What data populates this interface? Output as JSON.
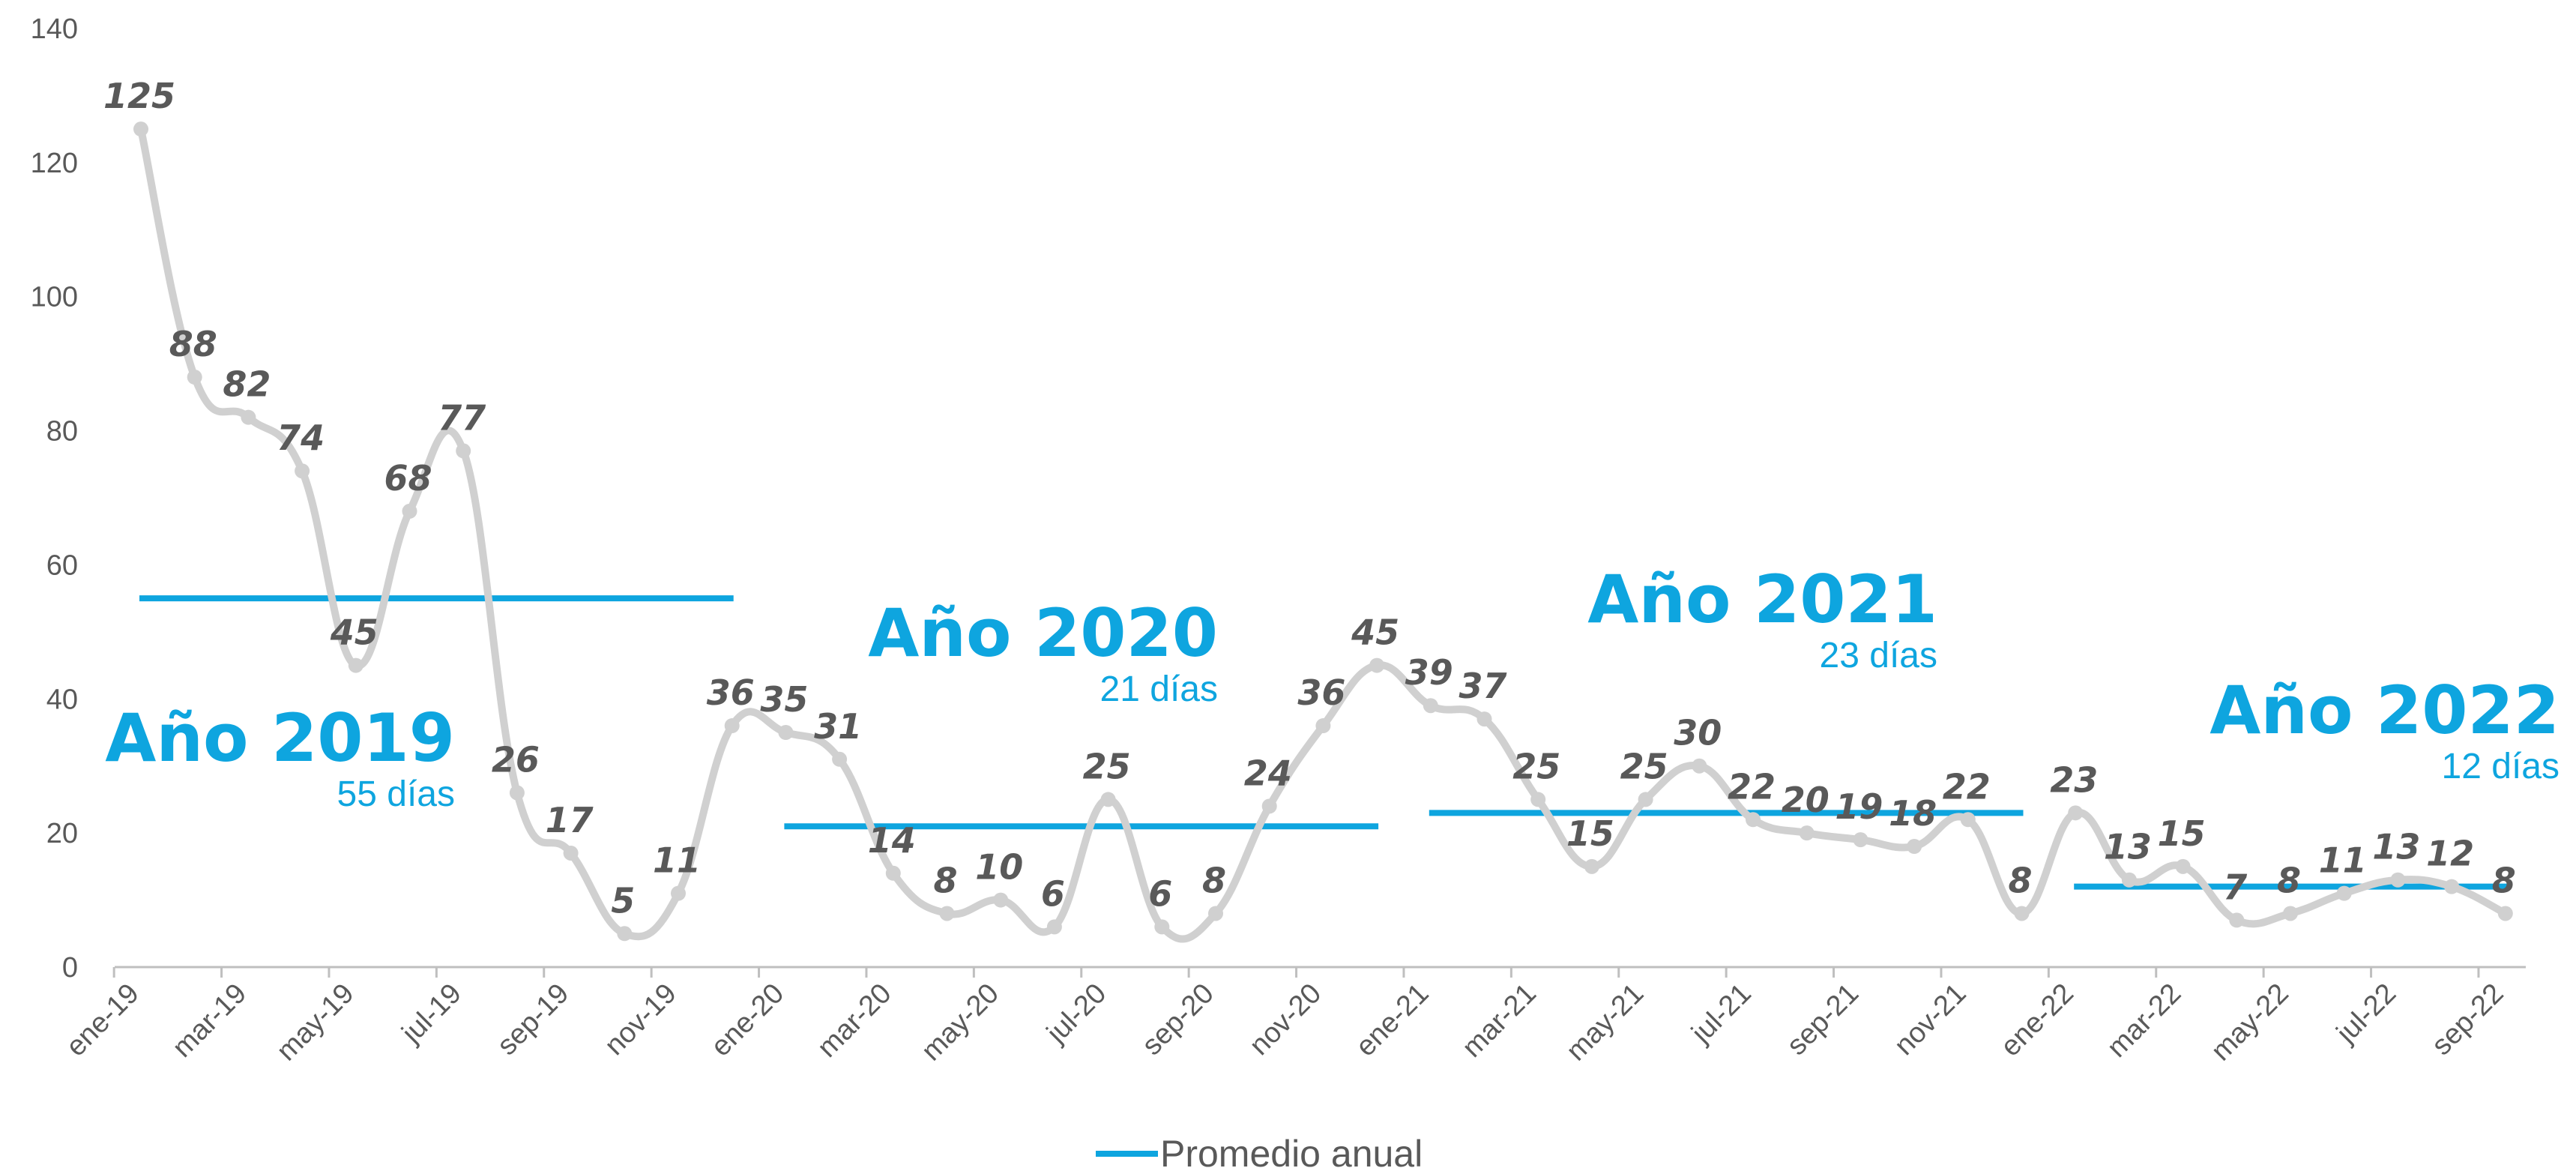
{
  "chart_data": {
    "type": "line",
    "x": [
      "ene-19",
      "feb-19",
      "mar-19",
      "abr-19",
      "may-19",
      "jun-19",
      "jul-19",
      "ago-19",
      "sep-19",
      "oct-19",
      "nov-19",
      "dic-19",
      "ene-20",
      "feb-20",
      "mar-20",
      "abr-20",
      "may-20",
      "jun-20",
      "jul-20",
      "ago-20",
      "sep-20",
      "oct-20",
      "nov-20",
      "dic-20",
      "ene-21",
      "feb-21",
      "mar-21",
      "abr-21",
      "may-21",
      "jun-21",
      "jul-21",
      "ago-21",
      "sep-21",
      "oct-21",
      "nov-21",
      "dic-21",
      "ene-22",
      "feb-22",
      "mar-22",
      "abr-22",
      "may-22",
      "jun-22",
      "jul-22",
      "ago-22",
      "sep-22"
    ],
    "x_tick_labels": [
      "ene-19",
      "mar-19",
      "may-19",
      "jul-19",
      "sep-19",
      "nov-19",
      "ene-20",
      "mar-20",
      "may-20",
      "jul-20",
      "sep-20",
      "nov-20",
      "ene-21",
      "mar-21",
      "may-21",
      "jul-21",
      "sep-21",
      "nov-21",
      "ene-22",
      "mar-22",
      "may-22",
      "jul-22",
      "sep-22"
    ],
    "values": [
      125,
      88,
      82,
      74,
      45,
      68,
      77,
      26,
      17,
      5,
      11,
      36,
      35,
      31,
      14,
      8,
      10,
      6,
      25,
      6,
      8,
      24,
      36,
      45,
      39,
      37,
      25,
      15,
      25,
      30,
      22,
      20,
      19,
      18,
      22,
      8,
      23,
      13,
      15,
      7,
      8,
      11,
      13,
      12,
      8
    ],
    "ylim": [
      0,
      140
    ],
    "y_ticks": [
      "0",
      "20",
      "40",
      "60",
      "80",
      "100",
      "120",
      "140"
    ],
    "averages": [
      {
        "title": "Año 2019",
        "subtitle": "55 días",
        "value": 55,
        "start": 0,
        "end": 11
      },
      {
        "title": "Año 2020",
        "subtitle": "21 días",
        "value": 21,
        "start": 12,
        "end": 23
      },
      {
        "title": "Año 2021",
        "subtitle": "23 días",
        "value": 23,
        "start": 24,
        "end": 35
      },
      {
        "title": "Año 2022",
        "subtitle": "12 días",
        "value": 12,
        "start": 36,
        "end": 44
      }
    ],
    "legend": {
      "label": "Promedio anual",
      "position": "bottom"
    },
    "grid": false,
    "colors": {
      "series": "#d0d0d0",
      "average": "#0ea5df",
      "axis": "#bfbfbf",
      "label": "#595959"
    }
  }
}
